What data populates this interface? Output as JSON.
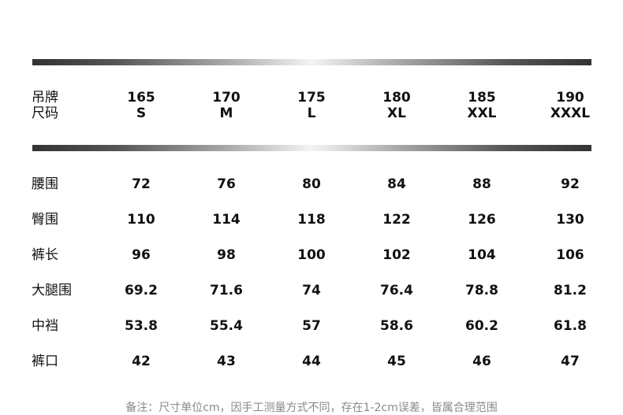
{
  "header": {
    "label_line1": "吊牌",
    "label_line2": "尺码",
    "sizes": [
      {
        "height": "165",
        "size": "S"
      },
      {
        "height": "170",
        "size": "M"
      },
      {
        "height": "175",
        "size": "L"
      },
      {
        "height": "180",
        "size": "XL"
      },
      {
        "height": "185",
        "size": "XXL"
      },
      {
        "height": "190",
        "size": "XXXL"
      }
    ]
  },
  "rows": [
    {
      "label": "腰围",
      "values": [
        "72",
        "76",
        "80",
        "84",
        "88",
        "92"
      ]
    },
    {
      "label": "臀围",
      "values": [
        "110",
        "114",
        "118",
        "122",
        "126",
        "130"
      ]
    },
    {
      "label": "裤长",
      "values": [
        "96",
        "98",
        "100",
        "102",
        "104",
        "106"
      ]
    },
    {
      "label": "大腿围",
      "values": [
        "69.2",
        "71.6",
        "74",
        "76.4",
        "78.8",
        "81.2"
      ]
    },
    {
      "label": "中裆",
      "values": [
        "53.8",
        "55.4",
        "57",
        "58.6",
        "60.2",
        "61.8"
      ]
    },
    {
      "label": "裤口",
      "values": [
        "42",
        "43",
        "44",
        "45",
        "46",
        "47"
      ]
    }
  ],
  "note": "备注：尺寸单位cm，因手工测量方式不同，存在1-2cm误差，皆属合理范围"
}
